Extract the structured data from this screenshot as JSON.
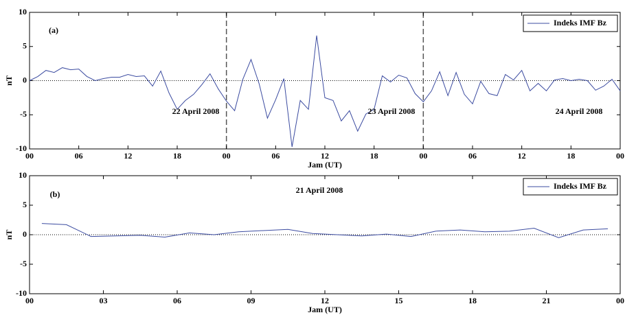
{
  "chart_data": [
    {
      "type": "line",
      "ylabel": "nT",
      "xlabel": "Jam (UT)",
      "annotations": [
        "(a)",
        "22 April 2008",
        "23 April 2008",
        "24 April 2008"
      ],
      "x": [
        0,
        1,
        2,
        3,
        4,
        5,
        6,
        7,
        8,
        9,
        10,
        11,
        12,
        13,
        14,
        15,
        16,
        17,
        18,
        19,
        20,
        21,
        22,
        23,
        24,
        25,
        26,
        27,
        28,
        29,
        30,
        31,
        32,
        33,
        34,
        35,
        36,
        37,
        38,
        39,
        40,
        41,
        42,
        43,
        44,
        45,
        46,
        47,
        48,
        49,
        50,
        51,
        52,
        53,
        54,
        55,
        56,
        57,
        58,
        59,
        60,
        61,
        62,
        63,
        64,
        65,
        66,
        67,
        68,
        69,
        70,
        71,
        72
      ],
      "series": [
        {
          "name": "Indeks IMF Bz",
          "color": "#3b4ba0",
          "values": [
            0,
            0.6,
            1.5,
            1.2,
            1.9,
            1.6,
            1.7,
            0.6,
            0.0,
            0.3,
            0.5,
            0.5,
            0.9,
            0.6,
            0.7,
            -0.8,
            1.4,
            -1.8,
            -4.2,
            -2.9,
            -2.0,
            -0.6,
            1.0,
            -1.2,
            -3.0,
            -4.4,
            0.2,
            3.1,
            -0.5,
            -5.5,
            -2.8,
            0.3,
            -9.7,
            -2.9,
            -4.2,
            6.6,
            -2.5,
            -2.9,
            -5.9,
            -4.4,
            -7.4,
            -4.9,
            -4.2,
            0.7,
            -0.2,
            0.8,
            0.4,
            -1.9,
            -3.1,
            -1.5,
            1.3,
            -2.2,
            1.2,
            -2.0,
            -3.4,
            -0.1,
            -1.9,
            -2.2,
            0.9,
            0.1,
            1.5,
            -1.5,
            -0.4,
            -1.5,
            0.1,
            0.3,
            0.0,
            0.2,
            0.0,
            -1.4,
            -0.8,
            0.2,
            -1.5
          ]
        }
      ],
      "xlim": [
        0,
        72
      ],
      "xticks": [
        {
          "value": 0,
          "label": "00"
        },
        {
          "value": 6,
          "label": "06"
        },
        12,
        18,
        {
          "value": 24,
          "label": "00"
        },
        {
          "value": 30,
          "label": "06"
        },
        {
          "value": 36,
          "label": "12"
        },
        {
          "value": 42,
          "label": "18"
        },
        {
          "value": 48,
          "label": "00"
        },
        {
          "value": 54,
          "label": "06"
        },
        {
          "value": 60,
          "label": "12"
        },
        {
          "value": 66,
          "label": "18"
        },
        {
          "value": 72,
          "label": "00"
        }
      ],
      "ylim": [
        -10,
        10
      ],
      "yticks": [
        10,
        5,
        0,
        -5,
        -10
      ],
      "vlines": [
        24,
        48
      ],
      "hlines": [
        0
      ],
      "legend": "upper right"
    },
    {
      "type": "line",
      "ylabel": "nT",
      "xlabel": "Jam (UT)",
      "annotations": [
        "(b)",
        "21 April 2008"
      ],
      "x": [
        0.5,
        1.5,
        2.5,
        3.5,
        4.5,
        5.5,
        6.5,
        7.5,
        8.5,
        9.5,
        10.5,
        11.5,
        12.5,
        13.5,
        14.5,
        15.5,
        16.5,
        17.5,
        18.5,
        19.5,
        20.5,
        21.5,
        22.5,
        23.5
      ],
      "series": [
        {
          "name": "Indeks IMF Bz",
          "color": "#3b4ba0",
          "values": [
            1.9,
            1.7,
            -0.3,
            -0.2,
            -0.1,
            -0.4,
            0.3,
            0.0,
            0.5,
            0.7,
            0.9,
            0.2,
            0.0,
            -0.2,
            0.1,
            -0.3,
            0.6,
            0.8,
            0.5,
            0.6,
            1.1,
            -0.5,
            0.8,
            1.0
          ]
        }
      ],
      "xlim": [
        0,
        24
      ],
      "xticks": [
        {
          "value": 0,
          "label": "00"
        },
        {
          "value": 3,
          "label": "03"
        },
        {
          "value": 6,
          "label": "06"
        },
        {
          "value": 9,
          "label": "09"
        },
        12,
        15,
        18,
        21,
        {
          "value": 24,
          "label": "00"
        }
      ],
      "ylim": [
        -10,
        10
      ],
      "yticks": [
        10,
        5,
        0,
        -5,
        -10
      ],
      "vlines": [],
      "hlines": [
        0
      ],
      "legend": "upper right"
    }
  ]
}
